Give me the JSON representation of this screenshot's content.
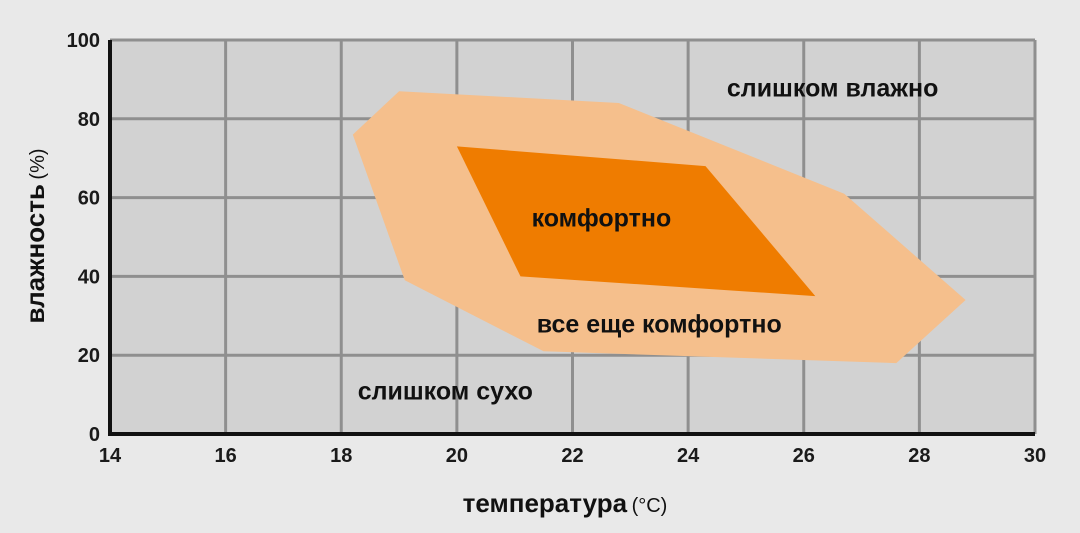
{
  "chart_data": {
    "type": "area",
    "xlabel": "температура",
    "xlabel_unit": "(°C)",
    "ylabel": "влажность",
    "ylabel_unit": "(%)",
    "xlim": [
      14,
      30
    ],
    "ylim": [
      0,
      100
    ],
    "x_ticks": [
      14,
      16,
      18,
      20,
      22,
      24,
      26,
      28,
      30
    ],
    "y_ticks": [
      0,
      20,
      40,
      60,
      80,
      100
    ],
    "grid": true,
    "colors": {
      "background": "#e9e9e9",
      "plot_area": "#d2d2d2",
      "grid": "#8f8f8f",
      "axis": "#111111",
      "still_comfortable": "#f5bf8c",
      "comfortable": "#ef7c00"
    },
    "regions": [
      {
        "name": "все еще комфортно",
        "label": "все еще комфортно",
        "label_at": {
          "x": 23.5,
          "y": 28
        },
        "points": [
          {
            "x": 19.0,
            "y": 87
          },
          {
            "x": 22.8,
            "y": 84
          },
          {
            "x": 26.7,
            "y": 61
          },
          {
            "x": 28.8,
            "y": 34
          },
          {
            "x": 27.6,
            "y": 18
          },
          {
            "x": 21.5,
            "y": 21
          },
          {
            "x": 19.1,
            "y": 39
          },
          {
            "x": 18.2,
            "y": 76
          }
        ]
      },
      {
        "name": "комфортно",
        "label": "комфортно",
        "label_at": {
          "x": 22.5,
          "y": 55
        },
        "points": [
          {
            "x": 20.0,
            "y": 73
          },
          {
            "x": 24.3,
            "y": 68
          },
          {
            "x": 26.2,
            "y": 35
          },
          {
            "x": 21.1,
            "y": 40
          }
        ]
      }
    ],
    "annotations": [
      {
        "text": "слишком влажно",
        "x": 26.5,
        "y": 88
      },
      {
        "text": "слишком сухо",
        "x": 19.8,
        "y": 11
      }
    ]
  }
}
